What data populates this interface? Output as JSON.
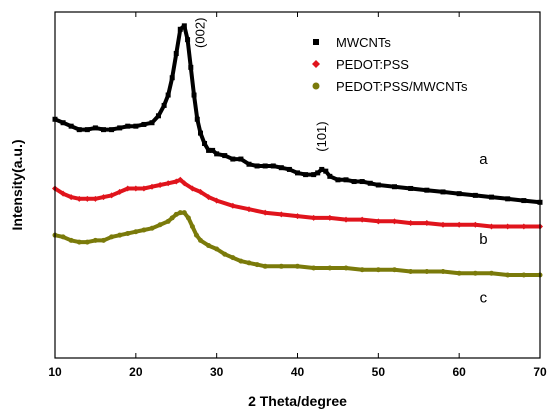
{
  "chart_data": {
    "type": "line",
    "title": "",
    "xlabel": "2 Theta/degree",
    "ylabel": "Intensity(a.u.)",
    "xlim": [
      10,
      70
    ],
    "ylim": [
      0,
      100
    ],
    "xticks": [
      10,
      20,
      30,
      40,
      50,
      60,
      70
    ],
    "grid": false,
    "legend_position": "top-right",
    "series": [
      {
        "name": "MWCNTs",
        "marker": "square",
        "color": "#000000",
        "curve_label": "a",
        "x": [
          10,
          11,
          12,
          13,
          14,
          15,
          16,
          17,
          18,
          19,
          20,
          21,
          22,
          22.8,
          23.5,
          24,
          24.5,
          25,
          25.5,
          26,
          26.4,
          26.8,
          27.2,
          27.6,
          28,
          28.5,
          29,
          29.5,
          30,
          31,
          32,
          33,
          34,
          35,
          36,
          37,
          38,
          39,
          40,
          41,
          42,
          42.5,
          43,
          43.5,
          44,
          45,
          46,
          47,
          48,
          49,
          50,
          52,
          54,
          56,
          58,
          60,
          62,
          64,
          66,
          68,
          70
        ],
        "y": [
          69,
          68,
          67,
          66,
          66,
          66.5,
          66,
          66,
          66.5,
          67,
          67,
          67.5,
          68,
          70,
          73,
          76,
          81,
          88,
          95,
          96,
          92,
          84,
          76,
          69,
          65,
          62,
          60,
          60,
          59,
          58.5,
          57.5,
          57.5,
          56,
          55.5,
          55.5,
          55.5,
          55,
          54.5,
          53.5,
          53,
          53,
          53.5,
          54.5,
          54,
          52.5,
          51.5,
          51.5,
          51,
          51,
          50.5,
          50,
          49.5,
          49,
          48.5,
          48,
          47.5,
          47,
          46.5,
          46,
          45.5,
          45
        ]
      },
      {
        "name": "PEDOT:PSS",
        "marker": "diamond",
        "color": "#e0141c",
        "curve_label": "b",
        "x": [
          10,
          11,
          12,
          13,
          14,
          15,
          16,
          17,
          18,
          19,
          20,
          21,
          22,
          23,
          24,
          25,
          25.5,
          26,
          27,
          28,
          29,
          30,
          32,
          34,
          36,
          38,
          40,
          42,
          44,
          46,
          48,
          50,
          52,
          54,
          56,
          58,
          60,
          62,
          64,
          66,
          68,
          70
        ],
        "y": [
          49,
          47.5,
          46.5,
          46,
          46,
          46,
          46.5,
          47,
          48,
          49,
          49,
          49,
          49.5,
          50,
          50.5,
          51,
          51.5,
          50.5,
          49,
          48,
          46.5,
          45.5,
          44,
          43,
          42,
          41.5,
          41,
          40.5,
          40.5,
          40,
          40,
          39.5,
          39.5,
          39,
          39,
          38.5,
          38.5,
          38.5,
          38,
          38,
          38,
          38
        ]
      },
      {
        "name": "PEDOT:PSS/MWCNTs",
        "marker": "circle",
        "color": "#7a7a0a",
        "curve_label": "c",
        "x": [
          10,
          11,
          12,
          13,
          14,
          15,
          16,
          17,
          18,
          19,
          20,
          21,
          22,
          23,
          24,
          24.5,
          25,
          25.5,
          26,
          26.5,
          27,
          27.5,
          28,
          29,
          30,
          31,
          32,
          33,
          34,
          35,
          36,
          38,
          40,
          42,
          44,
          46,
          48,
          50,
          52,
          54,
          56,
          58,
          60,
          62,
          64,
          66,
          68,
          70
        ],
        "y": [
          35.5,
          35,
          34,
          33.5,
          33.5,
          34,
          34,
          35,
          35.5,
          36,
          36.5,
          37,
          37.5,
          38.5,
          39.5,
          40.5,
          41.5,
          42,
          42,
          40.5,
          38,
          35.5,
          34,
          32.5,
          31.5,
          30,
          29,
          28,
          27.5,
          27,
          26.5,
          26.5,
          26.5,
          26,
          26,
          26,
          25.5,
          25.5,
          25.5,
          25,
          25,
          25,
          24.5,
          24.5,
          24.5,
          24,
          24,
          24
        ]
      }
    ],
    "annotations": [
      {
        "text": "(002)",
        "x": 28.5,
        "y": 94,
        "rotation": -90
      },
      {
        "text": "(101)",
        "x": 43.5,
        "y": 64,
        "rotation": -90
      }
    ]
  }
}
